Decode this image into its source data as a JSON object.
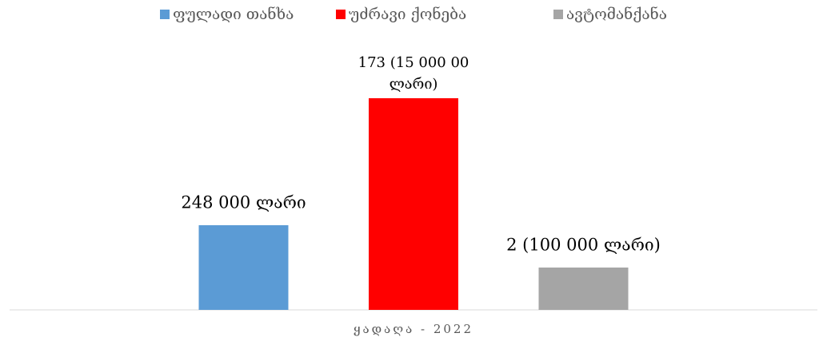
{
  "chart_data": {
    "type": "bar",
    "categories": [
      "ყადაღა - 2022"
    ],
    "series": [
      {
        "name": "ფულადი თანხა",
        "color": "#5b9bd5",
        "values": [
          2
        ]
      },
      {
        "name": "უძრავი ქონება",
        "color": "#ff0000",
        "values": [
          5
        ]
      },
      {
        "name": "ავტომანქანა",
        "color": "#a5a5a5",
        "values": [
          1
        ]
      }
    ],
    "annotations": [
      "248 000 ლარი",
      "173 (15 000 00 ლარი)",
      "2 (100 000 ლარი)"
    ],
    "ylim": [
      0,
      7
    ],
    "legend": "top"
  }
}
